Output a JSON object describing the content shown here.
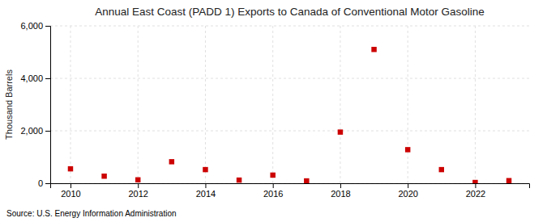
{
  "chart_data": {
    "type": "scatter",
    "title": "Annual East Coast (PADD 1) Exports to Canada of Conventional Motor Gasoline",
    "ylabel": "Thousand Barrels",
    "source": "Source: U.S. Energy Information Administration",
    "x": [
      2010,
      2011,
      2012,
      2013,
      2014,
      2015,
      2016,
      2017,
      2018,
      2019,
      2020,
      2021,
      2022,
      2023
    ],
    "values": [
      550,
      270,
      130,
      820,
      520,
      120,
      310,
      90,
      1950,
      5100,
      1280,
      520,
      30,
      100
    ],
    "color": "#cc0000",
    "marker": "square",
    "xlim": [
      2009.4,
      2023.6
    ],
    "xticks": [
      2010,
      2012,
      2014,
      2016,
      2018,
      2020,
      2022
    ],
    "ylim": [
      0,
      6000
    ],
    "yticks": [
      0,
      {
        "value": 2000,
        "label": "2,000"
      },
      {
        "value": 4000,
        "label": "4,000"
      },
      {
        "value": 6000,
        "label": "6,000"
      }
    ],
    "grid": true
  }
}
